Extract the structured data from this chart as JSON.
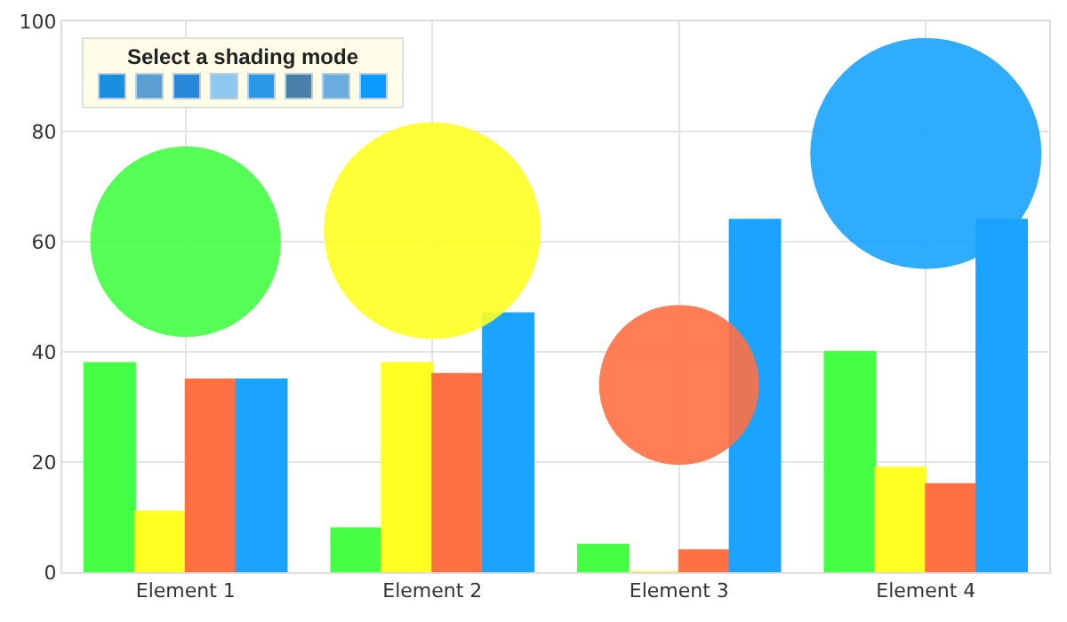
{
  "chart_data": {
    "type": "bar",
    "categories": [
      "Element 1",
      "Element 2",
      "Element 3",
      "Element 4"
    ],
    "series": [
      {
        "color": "#44ff44",
        "values": [
          38,
          8,
          5,
          40
        ]
      },
      {
        "color": "#ffff22",
        "values": [
          11,
          38,
          0,
          19
        ]
      },
      {
        "color": "#ff7043",
        "values": [
          35,
          36,
          4,
          16
        ]
      },
      {
        "color": "#1aa3ff",
        "values": [
          35,
          47,
          64,
          64
        ]
      },
      {
        "type": "bubble",
        "colors": [
          "#44ff44",
          "#ffff22",
          "#ff7043",
          "#1aa3ff"
        ],
        "values": [
          60,
          62,
          34,
          76
        ],
        "sizes": [
          0.68,
          0.88,
          0.48,
          1
        ]
      }
    ],
    "ylim": [
      0,
      100
    ],
    "yticks": [
      0,
      20,
      40,
      60,
      80,
      100
    ],
    "grid": true,
    "annotations": [
      "Select a shading mode"
    ]
  }
}
